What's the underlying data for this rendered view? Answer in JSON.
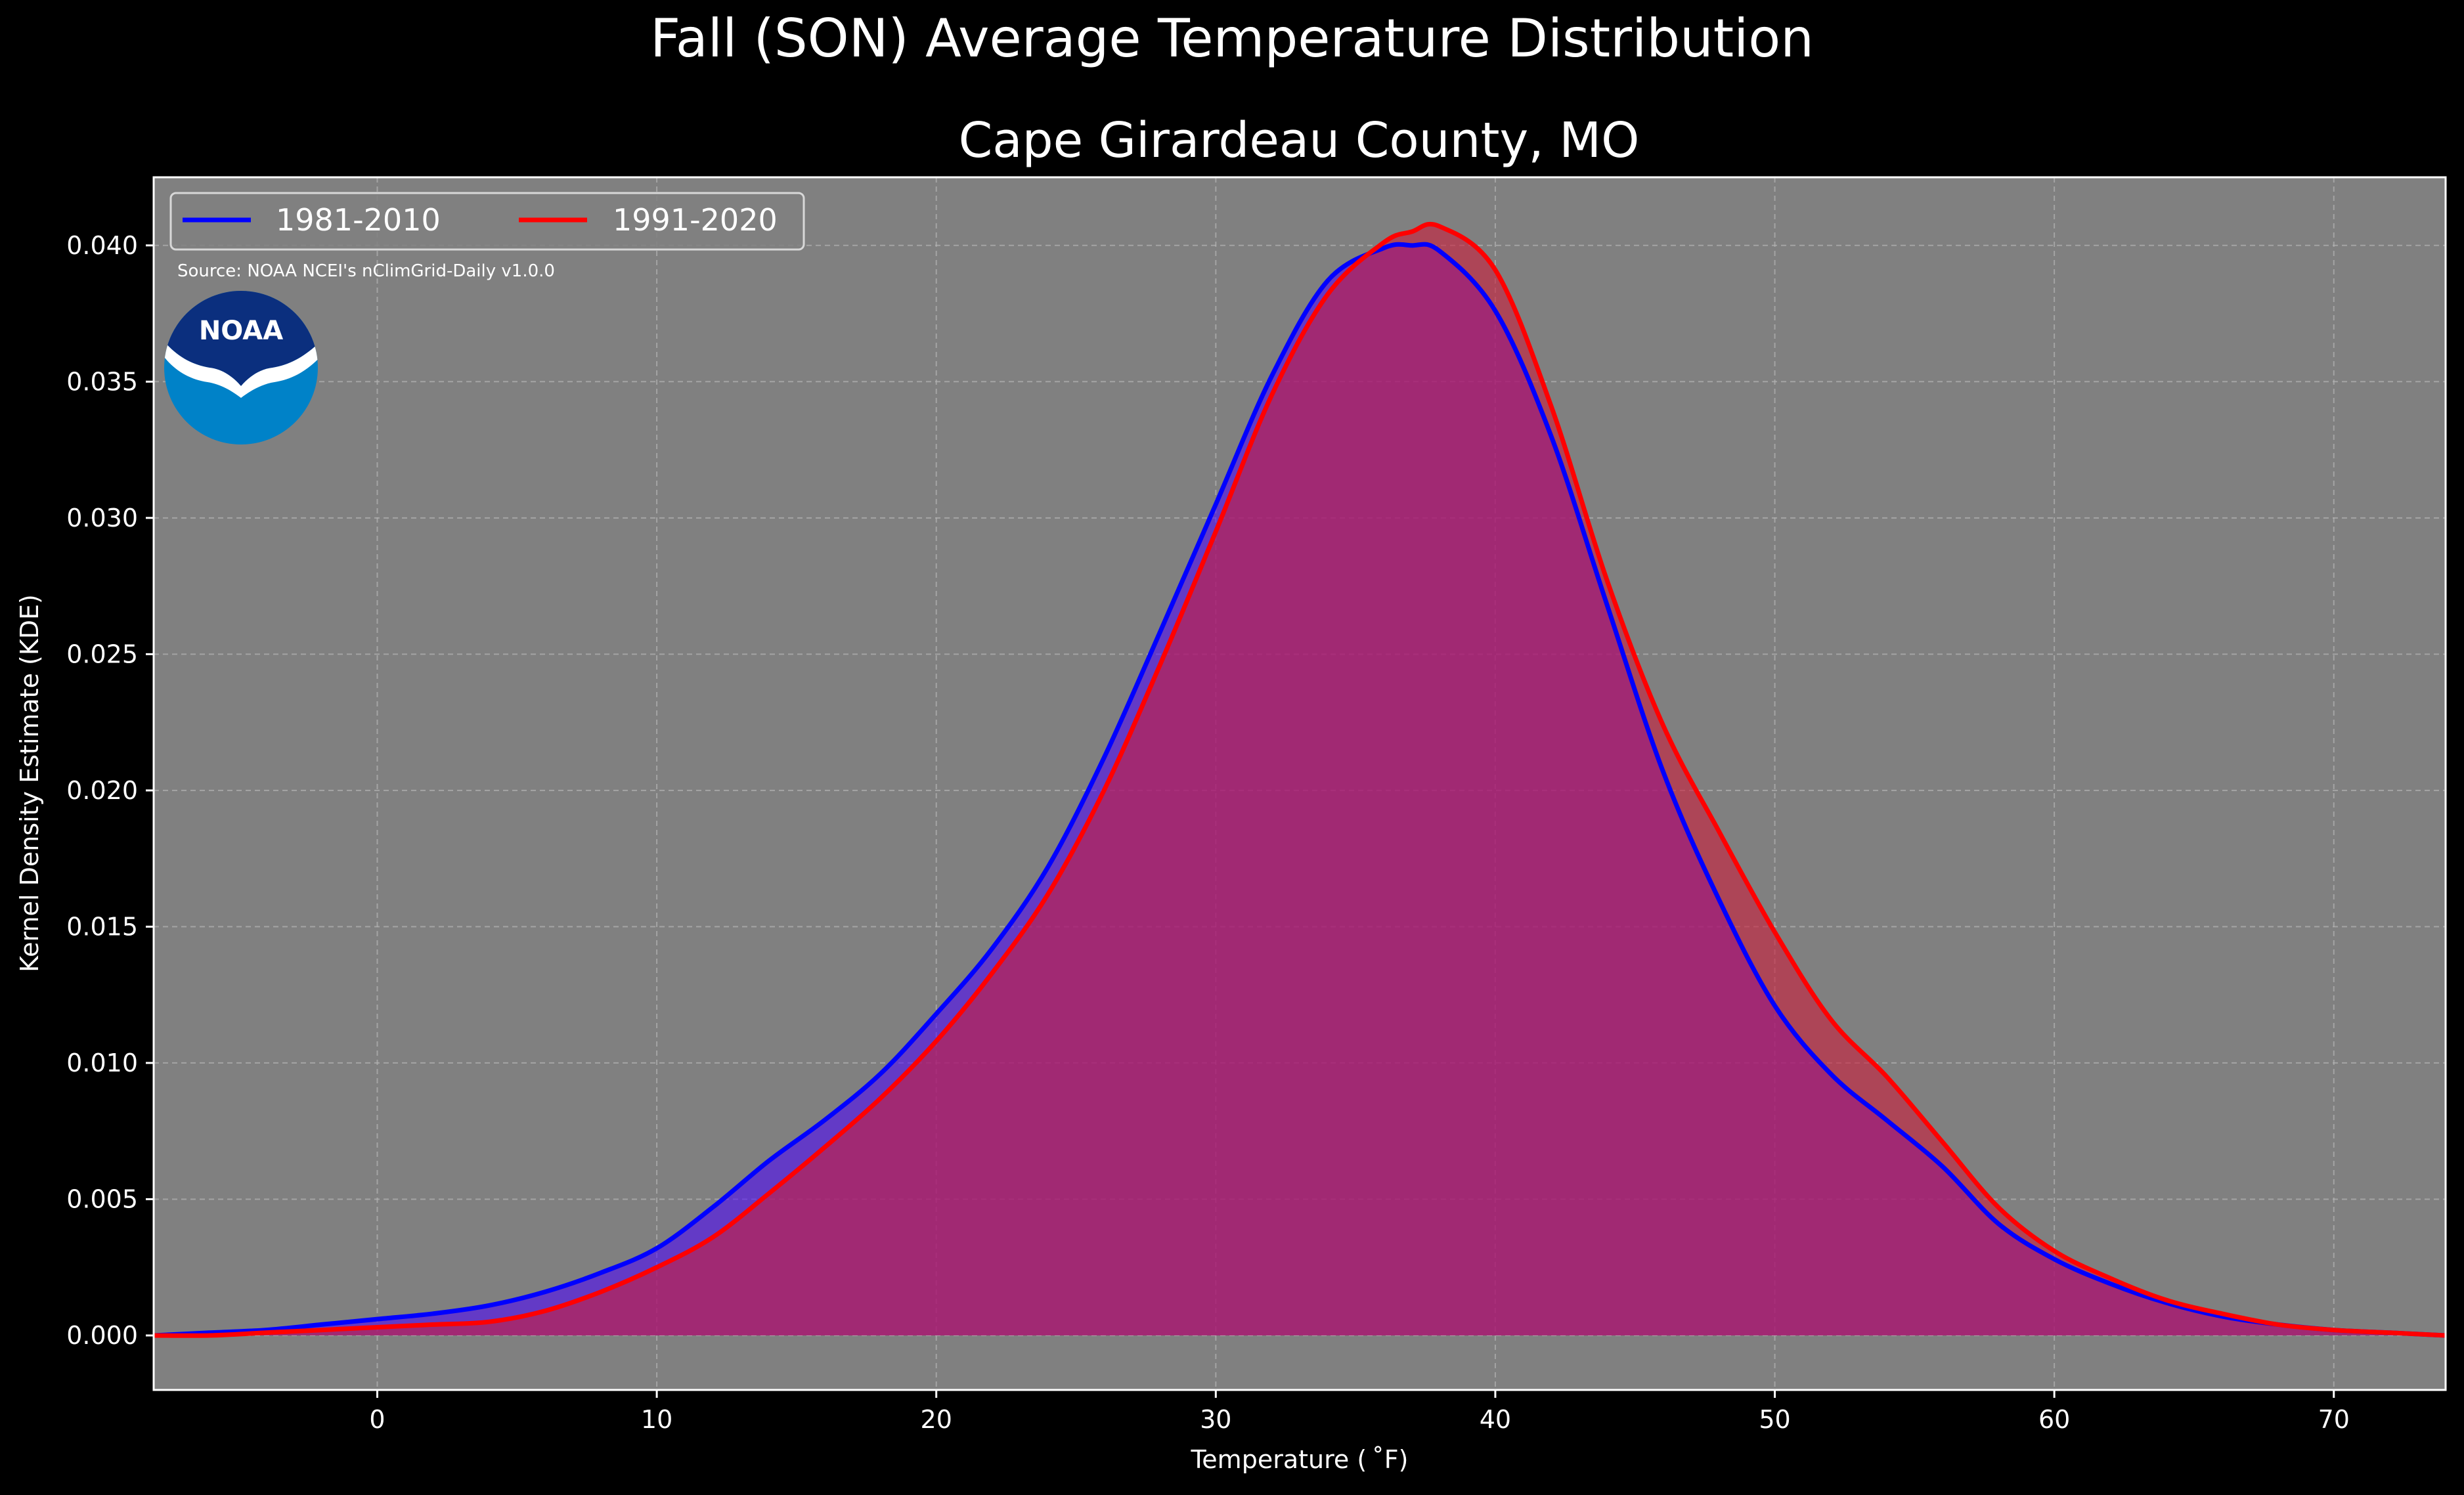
{
  "suptitle": "Fall (SON) Average Temperature Distribution",
  "chart_data": {
    "type": "area",
    "title": "Cape Girardeau County, MO",
    "xlabel": "Temperature ($^\\circ$F)",
    "xlabel_display": "Temperature ( ˚F)",
    "ylabel": "Kernel Density Estimate (KDE)",
    "xlim": [
      -8,
      74
    ],
    "ylim": [
      -0.002,
      0.0425
    ],
    "xticks": [
      0,
      10,
      20,
      30,
      40,
      50,
      60,
      70
    ],
    "xtick_labels": [
      "0",
      "10",
      "20",
      "30",
      "40",
      "50",
      "60",
      "70"
    ],
    "yticks": [
      0.0,
      0.005,
      0.01,
      0.015,
      0.02,
      0.025,
      0.03,
      0.035,
      0.04
    ],
    "ytick_labels": [
      "0.000",
      "0.005",
      "0.010",
      "0.015",
      "0.020",
      "0.025",
      "0.030",
      "0.035",
      "0.040"
    ],
    "grid": true,
    "legend_position": "top-left",
    "background": "#808080",
    "series": [
      {
        "name": "1981-2010",
        "color": "#0000ff",
        "fill": "#4b00ff",
        "x": [
          -8,
          -6,
          -4,
          -2,
          0,
          2,
          4,
          6,
          8,
          10,
          12,
          14,
          16,
          18,
          20,
          22,
          24,
          26,
          28,
          30,
          32,
          34,
          36,
          37,
          38,
          40,
          42,
          44,
          46,
          48,
          50,
          52,
          54,
          56,
          58,
          60,
          62,
          64,
          66,
          68,
          70,
          72,
          74
        ],
        "y": [
          0.0,
          0.0001,
          0.0002,
          0.0004,
          0.0006,
          0.0008,
          0.0011,
          0.0016,
          0.0023,
          0.0032,
          0.0047,
          0.0064,
          0.0079,
          0.0096,
          0.0118,
          0.0142,
          0.0172,
          0.0212,
          0.0258,
          0.0305,
          0.0352,
          0.0387,
          0.0399,
          0.04,
          0.0398,
          0.0376,
          0.033,
          0.0268,
          0.0207,
          0.016,
          0.0121,
          0.0096,
          0.0079,
          0.0062,
          0.0041,
          0.0028,
          0.0019,
          0.0012,
          0.0007,
          0.0004,
          0.0002,
          0.0001,
          0.0
        ]
      },
      {
        "name": "1991-2020",
        "color": "#ff0000",
        "fill": "#cc1e3c",
        "x": [
          -8,
          -6,
          -4,
          -2,
          0,
          2,
          4,
          6,
          8,
          10,
          12,
          14,
          16,
          18,
          20,
          22,
          24,
          26,
          28,
          30,
          32,
          34,
          36,
          37,
          38,
          40,
          42,
          44,
          46,
          48,
          50,
          52,
          54,
          56,
          58,
          60,
          62,
          64,
          66,
          68,
          70,
          72,
          74
        ],
        "y": [
          0.0,
          0.0,
          0.0001,
          0.0002,
          0.0003,
          0.0004,
          0.0005,
          0.0009,
          0.0016,
          0.0025,
          0.0036,
          0.0052,
          0.0069,
          0.0087,
          0.0108,
          0.0133,
          0.0162,
          0.02,
          0.0246,
          0.0295,
          0.0345,
          0.0382,
          0.0401,
          0.0405,
          0.0407,
          0.0391,
          0.0341,
          0.0277,
          0.0224,
          0.0185,
          0.0148,
          0.0116,
          0.0095,
          0.0071,
          0.0047,
          0.0031,
          0.0021,
          0.0013,
          0.0008,
          0.0004,
          0.0002,
          0.0001,
          0.0
        ]
      }
    ],
    "annotations": [
      "Source: NOAA NCEI's nClimGrid-Daily v1.0.0"
    ]
  },
  "logo": {
    "text": "NOAA",
    "icon": "noaa-logo-icon",
    "colors": {
      "top": "#0b2f7e",
      "bottom": "#0082c8",
      "bird": "#ffffff"
    }
  },
  "colors": {
    "page": "#000000",
    "text": "#ffffff",
    "grid": "#b4b4b4"
  }
}
